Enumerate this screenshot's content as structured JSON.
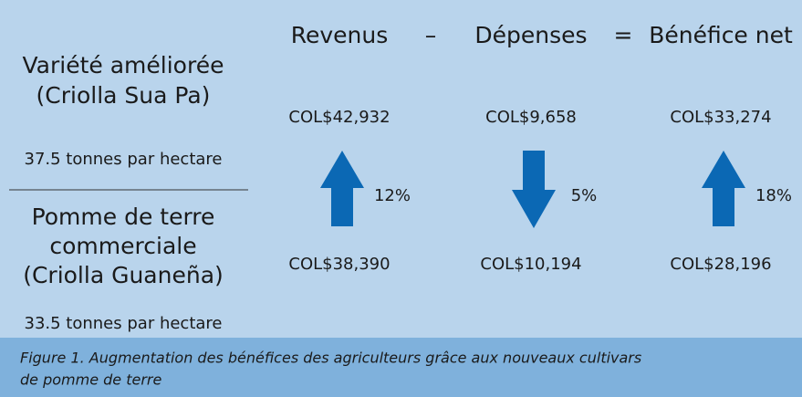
{
  "left": {
    "improved": {
      "lines": [
        "Variété améliorée",
        "(Criolla Sua Pa)"
      ],
      "yield": "37.5 tonnes par hectare"
    },
    "commercial": {
      "lines": [
        "Pomme de terre",
        "commerciale",
        "(Criolla Guaneña)"
      ],
      "yield": "33.5 tonnes par hectare"
    }
  },
  "columns": [
    {
      "header": "Revenus",
      "improved": "COL$42,932",
      "commercial": "COL$38,390",
      "direction": "up",
      "change": "12%"
    },
    {
      "header": "Dépenses",
      "improved": "COL$9,658",
      "commercial": "COL$10,194",
      "direction": "down",
      "change": "5%"
    },
    {
      "header": "Bénéfice net",
      "improved": "COL$33,274",
      "commercial": "COL$28,196",
      "direction": "up",
      "change": "18%"
    }
  ],
  "operators": [
    "–",
    "="
  ],
  "caption": [
    "Figure 1. Augmentation des bénéfices des agriculteurs grâce aux nouveaux cultivars",
    "de pomme de terre"
  ]
}
